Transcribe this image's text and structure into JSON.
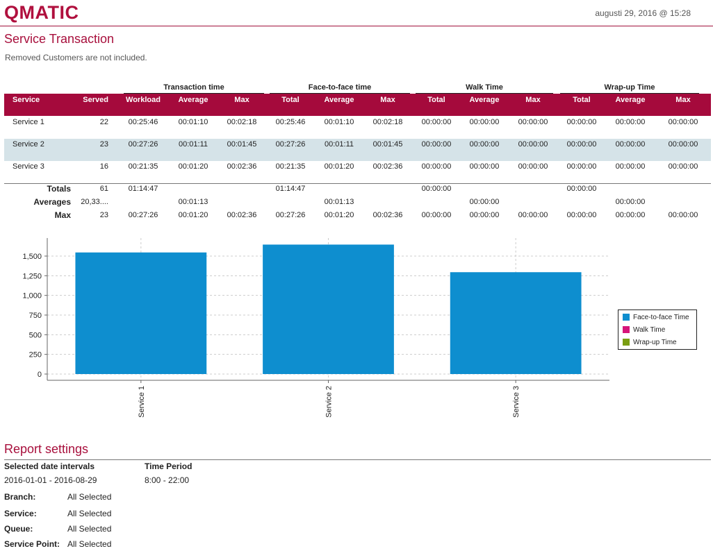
{
  "header": {
    "logo": "QMATIC",
    "date": "augusti 29, 2016 @ 15:28"
  },
  "report": {
    "title": "Service Transaction",
    "subtitle": "Removed Customers are not included."
  },
  "table": {
    "group_headers": [
      "Transaction time",
      "Face-to-face time",
      "Walk Time",
      "Wrap-up Time"
    ],
    "columns": [
      "Service",
      "Served",
      "Workload",
      "Average",
      "Max",
      "Total",
      "Average",
      "Max",
      "Total",
      "Average",
      "Max",
      "Total",
      "Average",
      "Max"
    ],
    "rows": [
      [
        "Service 1",
        "22",
        "00:25:46",
        "00:01:10",
        "00:02:18",
        "00:25:46",
        "00:01:10",
        "00:02:18",
        "00:00:00",
        "00:00:00",
        "00:00:00",
        "00:00:00",
        "00:00:00",
        "00:00:00"
      ],
      [
        "Service 2",
        "23",
        "00:27:26",
        "00:01:11",
        "00:01:45",
        "00:27:26",
        "00:01:11",
        "00:01:45",
        "00:00:00",
        "00:00:00",
        "00:00:00",
        "00:00:00",
        "00:00:00",
        "00:00:00"
      ],
      [
        "Service 3",
        "16",
        "00:21:35",
        "00:01:20",
        "00:02:36",
        "00:21:35",
        "00:01:20",
        "00:02:36",
        "00:00:00",
        "00:00:00",
        "00:00:00",
        "00:00:00",
        "00:00:00",
        "00:00:00"
      ]
    ],
    "summary": [
      [
        "Totals",
        "61",
        "01:14:47",
        "",
        "",
        "01:14:47",
        "",
        "",
        "00:00:00",
        "",
        "",
        "00:00:00",
        "",
        ""
      ],
      [
        "Averages",
        "20,33....",
        "",
        "00:01:13",
        "",
        "",
        "00:01:13",
        "",
        "",
        "00:00:00",
        "",
        "",
        "00:00:00",
        ""
      ],
      [
        "Max",
        "23",
        "00:27:26",
        "00:01:20",
        "00:02:36",
        "00:27:26",
        "00:01:20",
        "00:02:36",
        "00:00:00",
        "00:00:00",
        "00:00:00",
        "00:00:00",
        "00:00:00",
        "00:00:00"
      ]
    ],
    "colors": {
      "header_bg": "#a50a3c",
      "header_text": "#ffffff",
      "alt_row": "#d5e3e8"
    }
  },
  "chart_data": {
    "type": "bar",
    "categories": [
      "Service 1",
      "Service 2",
      "Service 3"
    ],
    "series": [
      {
        "name": "Face-to-face Time",
        "values": [
          1546,
          1646,
          1295
        ],
        "color": "#0e8ecf"
      },
      {
        "name": "Walk Time",
        "values": [
          0,
          0,
          0
        ],
        "color": "#d6157a"
      },
      {
        "name": "Wrap-up Time",
        "values": [
          0,
          0,
          0
        ],
        "color": "#7a9e12"
      }
    ],
    "yticks": [
      "0",
      "250",
      "500",
      "750",
      "1,000",
      "1,250",
      "1,500"
    ],
    "ylim": [
      0,
      1750
    ],
    "grid": true,
    "legend_position": "right"
  },
  "report_settings": {
    "title": "Report settings",
    "date_intervals_label": "Selected date intervals",
    "date_intervals_value": "2016-01-01 - 2016-08-29",
    "time_period_label": "Time Period",
    "time_period_value": "8:00 - 22:00",
    "filters": [
      {
        "label": "Branch:",
        "value": "All Selected"
      },
      {
        "label": "Service:",
        "value": "All Selected"
      },
      {
        "label": "Queue:",
        "value": "All Selected"
      },
      {
        "label": "Service Point:",
        "value": "All Selected"
      }
    ]
  }
}
